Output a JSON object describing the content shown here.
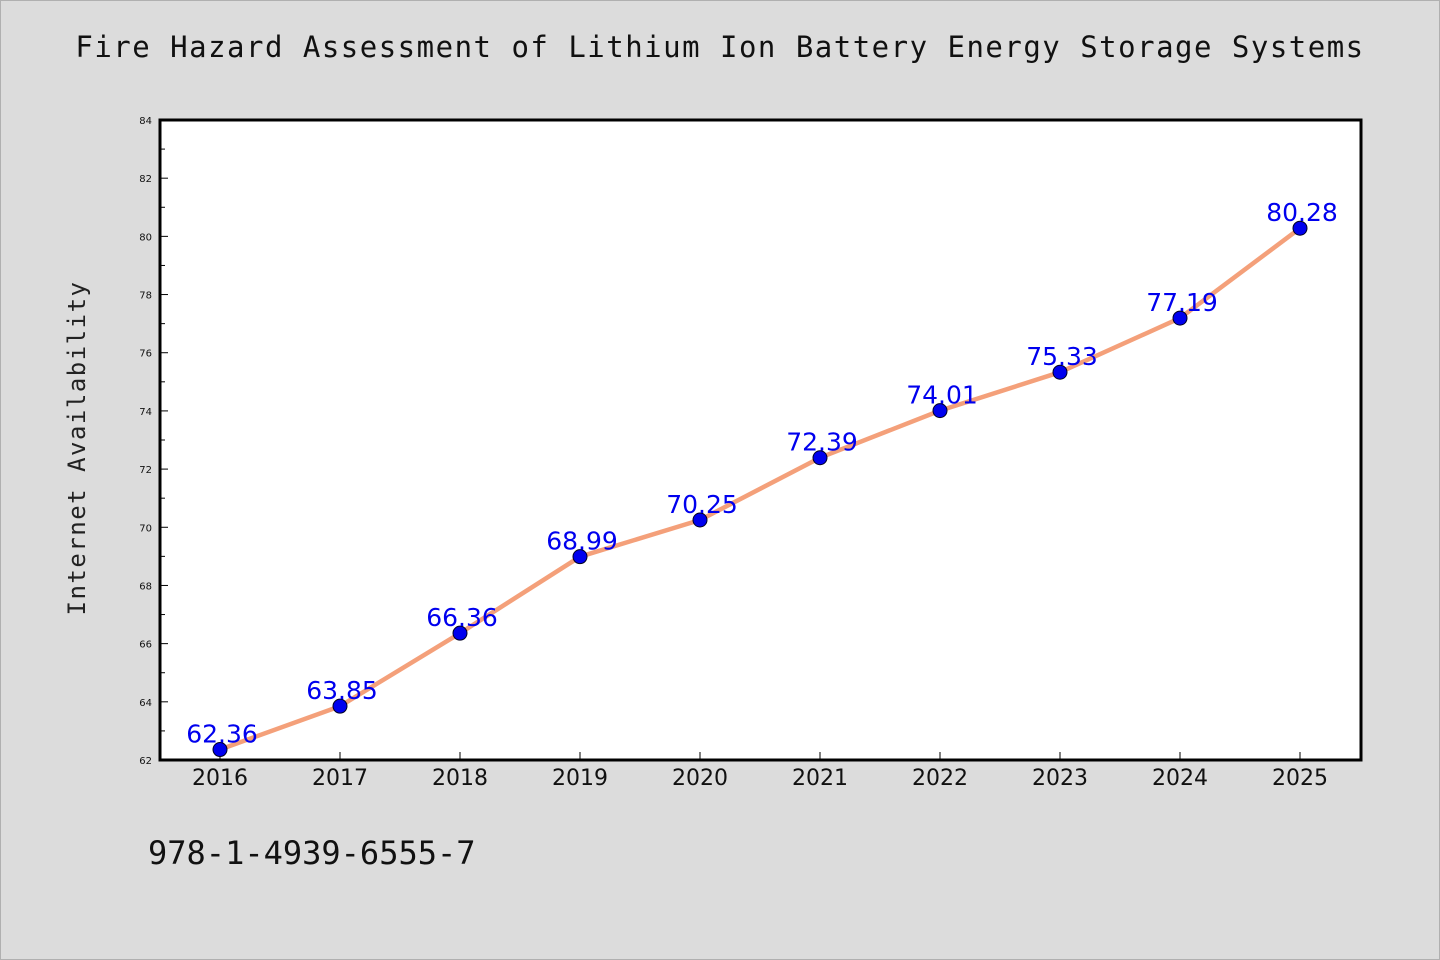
{
  "chart_data": {
    "type": "line",
    "title": "Fire Hazard Assessment of Lithium Ion Battery Energy Storage Systems",
    "xlabel": "",
    "ylabel": "Internet Availability",
    "categories": [
      "2016",
      "2017",
      "2018",
      "2019",
      "2020",
      "2021",
      "2022",
      "2023",
      "2024",
      "2025"
    ],
    "series": [
      {
        "values": [
          62.36,
          63.85,
          66.36,
          68.99,
          70.25,
          72.39,
          74.01,
          75.33,
          77.19,
          80.28
        ],
        "labels": [
          "62.36",
          "63.85",
          "66.36",
          "68.99",
          "70.25",
          "72.39",
          "74.01",
          "75.33",
          "77.19",
          "80.28"
        ]
      }
    ],
    "ylim": [
      62,
      84
    ],
    "yticks": [
      "62",
      "64",
      "66",
      "68",
      "70",
      "72",
      "74",
      "76",
      "78",
      "80",
      "82",
      "84"
    ],
    "grid": false,
    "legend": "none",
    "colors": {
      "line": "#f4a07a",
      "marker": "#0000ee",
      "label": "#0000ee",
      "background": "#dcdcdc",
      "plot_area": "#ffffff"
    }
  },
  "footer": {
    "isbn": "978-1-4939-6555-7"
  }
}
